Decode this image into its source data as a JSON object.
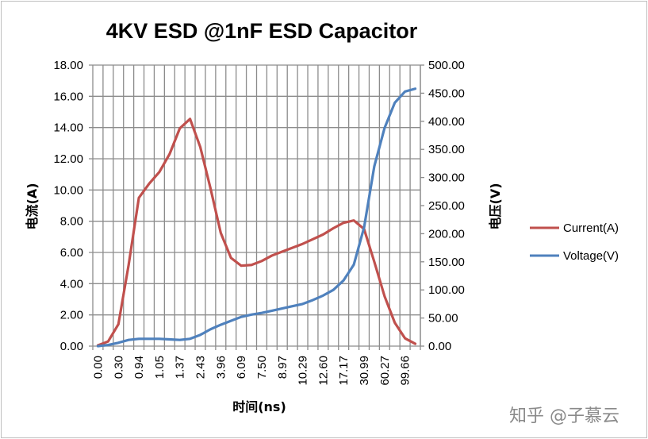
{
  "chart_data": {
    "type": "line",
    "title": "4KV ESD @1nF ESD Capacitor",
    "xlabel": "时间(ns)",
    "ylabel_left": "电流(A)",
    "ylabel_right": "电压(V)",
    "ylim_left": [
      0,
      18
    ],
    "ylim_right": [
      0,
      500
    ],
    "yticks_left": [
      "0.00",
      "2.00",
      "4.00",
      "6.00",
      "8.00",
      "10.00",
      "12.00",
      "14.00",
      "16.00",
      "18.00"
    ],
    "yticks_right": [
      "0.00",
      "50.00",
      "100.00",
      "150.00",
      "200.00",
      "250.00",
      "300.00",
      "350.00",
      "400.00",
      "450.00",
      "500.00"
    ],
    "categories": [
      "0.00",
      "",
      "0.30",
      "",
      "0.94",
      "",
      "1.05",
      "",
      "1.37",
      "",
      "2.43",
      "",
      "3.96",
      "",
      "6.09",
      "",
      "7.50",
      "",
      "8.97",
      "",
      "10.29",
      "",
      "12.60",
      "",
      "17.17",
      "",
      "30.99",
      "",
      "60.27",
      "",
      "99.66",
      ""
    ],
    "grid": true,
    "legend_position": "right",
    "series": [
      {
        "name": "Current(A)",
        "axis": "left",
        "color": "#c0504d",
        "values": [
          0.05,
          0.3,
          1.4,
          5.2,
          9.5,
          10.4,
          11.15,
          12.3,
          13.95,
          14.55,
          12.75,
          10.1,
          7.25,
          5.65,
          5.15,
          5.2,
          5.45,
          5.8,
          6.05,
          6.3,
          6.55,
          6.85,
          7.15,
          7.55,
          7.9,
          8.05,
          7.5,
          5.4,
          3.2,
          1.5,
          0.5,
          0.15
        ]
      },
      {
        "name": "Voltage(V)",
        "axis": "right",
        "color": "#4f81bd",
        "values": [
          0,
          2,
          6,
          11,
          13,
          13,
          13,
          12,
          11,
          13,
          20,
          30,
          38,
          45,
          52,
          56,
          59,
          63,
          67,
          71,
          75,
          82,
          90,
          100,
          117,
          145,
          211,
          320,
          388,
          433,
          453,
          458
        ]
      }
    ]
  },
  "watermark": "知乎 @子慕云"
}
